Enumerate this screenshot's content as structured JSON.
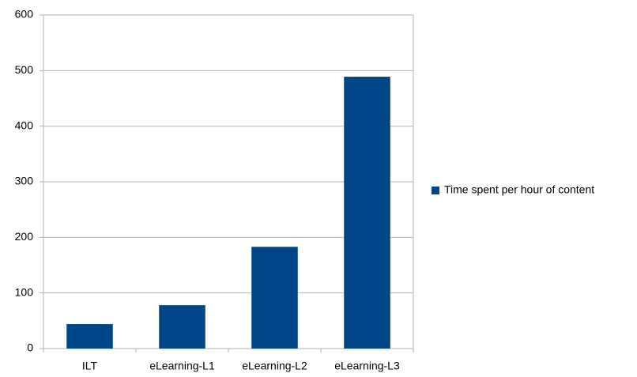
{
  "chart_data": {
    "type": "bar",
    "categories": [
      "ILT",
      "eLearning-L1",
      "eLearning-L2",
      "eLearning-L3"
    ],
    "series": [
      {
        "name": "Time spent per hour of content",
        "color": "#004586",
        "values": [
          44,
          78,
          183,
          489
        ]
      }
    ],
    "ylim": [
      0,
      600
    ],
    "yticks": [
      0,
      100,
      200,
      300,
      400,
      500,
      600
    ],
    "grid": true,
    "legend": "right"
  }
}
